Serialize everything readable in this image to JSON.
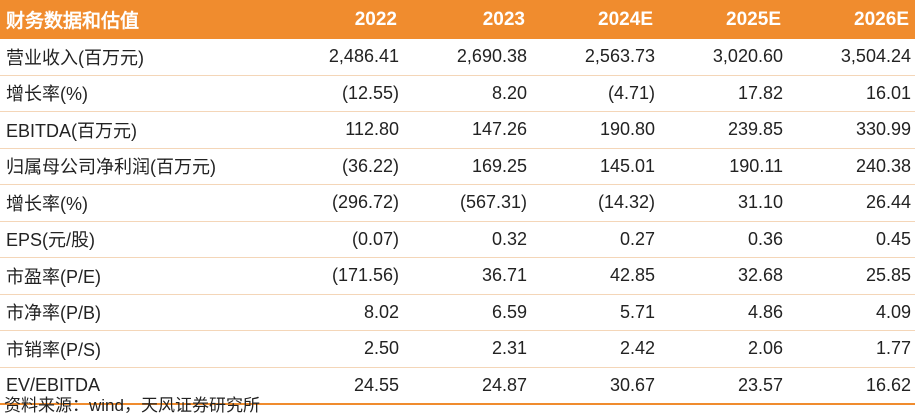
{
  "table": {
    "headers": [
      "财务数据和估值",
      "2022",
      "2023",
      "2024E",
      "2025E",
      "2026E"
    ],
    "rows": [
      {
        "label": "营业收入(百万元)",
        "values": [
          "2,486.41",
          "2,690.38",
          "2,563.73",
          "3,020.60",
          "3,504.24"
        ]
      },
      {
        "label": "增长率(%)",
        "values": [
          "(12.55)",
          "8.20",
          "(4.71)",
          "17.82",
          "16.01"
        ]
      },
      {
        "label": "EBITDA(百万元)",
        "values": [
          "112.80",
          "147.26",
          "190.80",
          "239.85",
          "330.99"
        ]
      },
      {
        "label": "归属母公司净利润(百万元)",
        "values": [
          "(36.22)",
          "169.25",
          "145.01",
          "190.11",
          "240.38"
        ]
      },
      {
        "label": "增长率(%)",
        "values": [
          "(296.72)",
          "(567.31)",
          "(14.32)",
          "31.10",
          "26.44"
        ]
      },
      {
        "label": "EPS(元/股)",
        "values": [
          "(0.07)",
          "0.32",
          "0.27",
          "0.36",
          "0.45"
        ]
      },
      {
        "label": "市盈率(P/E)",
        "values": [
          "(171.56)",
          "36.71",
          "42.85",
          "32.68",
          "25.85"
        ]
      },
      {
        "label": "市净率(P/B)",
        "values": [
          "8.02",
          "6.59",
          "5.71",
          "4.86",
          "4.09"
        ]
      },
      {
        "label": "市销率(P/S)",
        "values": [
          "2.50",
          "2.31",
          "2.42",
          "2.06",
          "1.77"
        ]
      },
      {
        "label": "EV/EBITDA",
        "values": [
          "24.55",
          "24.87",
          "30.67",
          "23.57",
          "16.62"
        ]
      }
    ]
  },
  "source": "资料来源：wind，天风证券研究所",
  "colors": {
    "header_bg": "#f08c2e",
    "header_text": "#ffffff",
    "row_divider": "#f4d6b8"
  }
}
